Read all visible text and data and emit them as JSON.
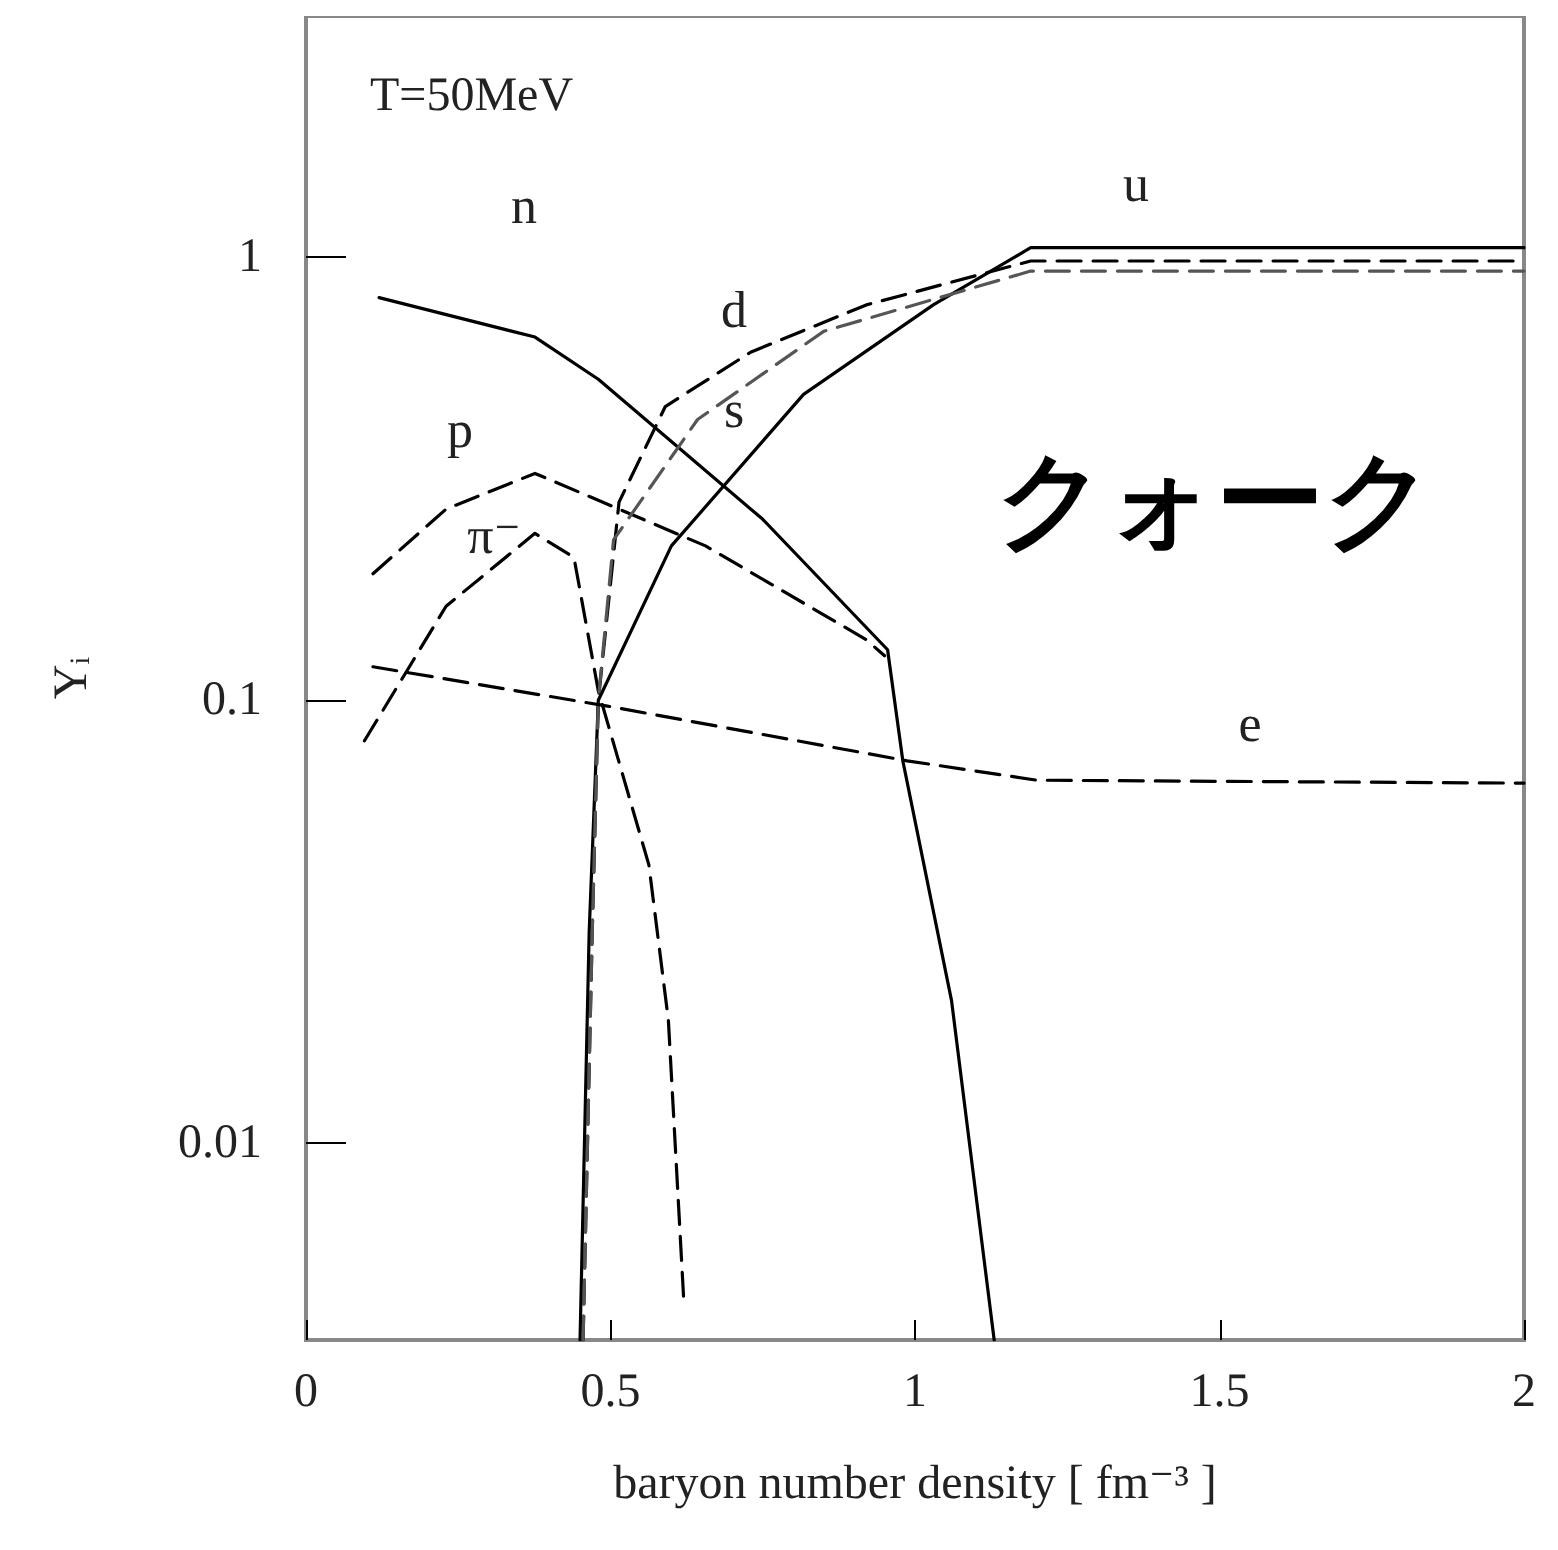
{
  "chart_data": {
    "type": "line",
    "xlabel": "baryon number density [ fm⁻³ ]",
    "ylabel": "Y$_{i}$",
    "log": "y",
    "xlim": [
      0,
      2
    ],
    "xticks": [
      0,
      0.5,
      1,
      1.5,
      2
    ],
    "ylim": [
      0.0036,
      3.5
    ],
    "yticks": [
      0.01,
      0.1,
      1
    ],
    "grid": false,
    "marker": "none",
    "series": [
      {
        "color": "#000000",
        "line_style": "solid",
        "x": [
          0.12,
          0.376,
          0.48,
          0.75,
          0.955,
          0.98,
          1.06,
          1.13
        ],
        "values": [
          0.81,
          0.66,
          0.53,
          0.256,
          0.13,
          0.073,
          0.021,
          0.0036
        ]
      },
      {
        "color": "#000000",
        "line_style": "dashed",
        "x": [
          0.11,
          0.23,
          0.376,
          0.656,
          0.92,
          0.95
        ],
        "values": [
          0.193,
          0.27,
          0.325,
          0.223,
          0.137,
          0.126
        ]
      },
      {
        "color": "#000000",
        "line_style": "dashed",
        "x": [
          0.096,
          0.23,
          0.376,
          0.44,
          0.48,
          0.563,
          0.595,
          0.62
        ],
        "values": [
          0.081,
          0.163,
          0.238,
          0.21,
          0.105,
          0.0425,
          0.019,
          0.0045
        ]
      },
      {
        "color": "#000000",
        "line_style": "solid",
        "x": [
          0.45,
          0.465,
          0.48,
          0.6,
          0.817,
          1.03,
          1.19,
          2
        ],
        "values": [
          0.0036,
          0.03,
          0.1,
          0.223,
          0.49,
          0.78,
          1.05,
          1.05
        ]
      },
      {
        "color": "#000000",
        "line_style": "dashed",
        "x": [
          0.455,
          0.47,
          0.48,
          0.514,
          0.59,
          0.73,
          0.92,
          1.19,
          2
        ],
        "values": [
          0.0036,
          0.03,
          0.1,
          0.28,
          0.46,
          0.61,
          0.78,
          0.98,
          0.98
        ]
      },
      {
        "color": "#555555",
        "line_style": "dashed",
        "x": [
          0.455,
          0.47,
          0.48,
          0.505,
          0.643,
          0.85,
          1.19,
          2
        ],
        "values": [
          0.0036,
          0.03,
          0.1,
          0.23,
          0.43,
          0.68,
          0.93,
          0.93
        ]
      },
      {
        "color": "#000000",
        "line_style": "dashed",
        "x": [
          0.11,
          0.495,
          0.987,
          1.2,
          2
        ],
        "values": [
          0.119,
          0.097,
          0.073,
          0.066,
          0.065
        ]
      }
    ],
    "annotations": [
      "T=50MeV",
      "クォーク",
      "n",
      "p",
      "π⁻",
      "d",
      "s",
      "u",
      "e"
    ]
  }
}
